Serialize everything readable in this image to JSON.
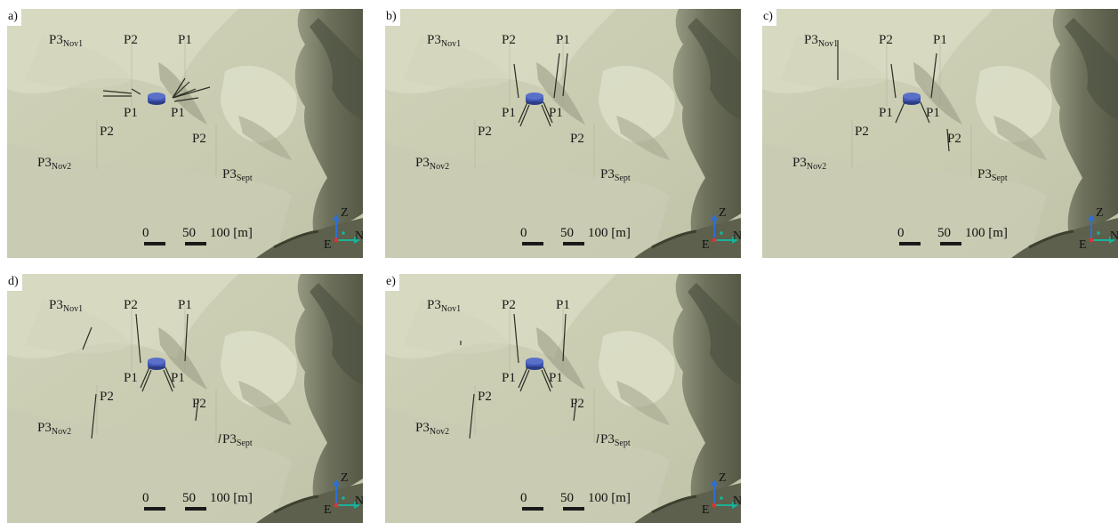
{
  "panels": [
    {
      "letter": "a)"
    },
    {
      "letter": "b)"
    },
    {
      "letter": "c)"
    },
    {
      "letter": "d)"
    },
    {
      "letter": "e)"
    }
  ],
  "labels": {
    "p1": "P1",
    "p2": "P2",
    "p3": "P3",
    "nov1": "Nov1",
    "nov2": "Nov2",
    "sept": "Sept"
  },
  "scale_bar": {
    "tick0": "0",
    "tick50": "50",
    "tick100": "100 [m]"
  },
  "axes": {
    "z": "Z",
    "n": "N",
    "e": "E"
  },
  "colors": {
    "terrain_light": "#d9dcc3",
    "terrain_mid": "#c6c9ae",
    "terrain_dark": "#6f735d",
    "source_blue": "#3f55b0",
    "axis_z": "#2e6fd6",
    "axis_n": "#19b39a",
    "axis_e": "#d93535"
  }
}
